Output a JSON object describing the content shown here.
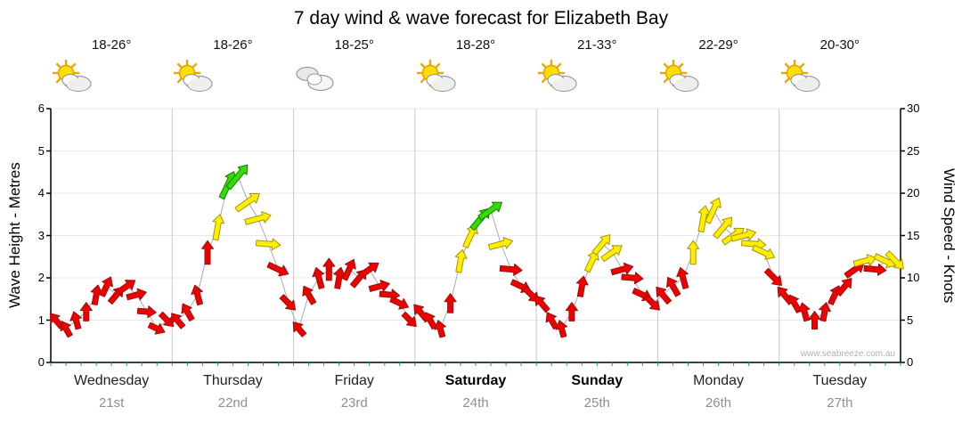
{
  "title": "7 day wind & wave forecast for Elizabeth Bay",
  "watermark": "www.seabreeze.com.au",
  "axes": {
    "left_label": "Wave Height - Metres",
    "right_label": "Wind Speed - Knots",
    "left_ticks": [
      0,
      1,
      2,
      3,
      4,
      5,
      6
    ],
    "right_ticks": [
      0,
      5,
      10,
      15,
      20,
      25,
      30
    ],
    "left_range_metres": [
      0,
      6
    ],
    "right_range_knots": [
      0,
      30
    ]
  },
  "days": [
    {
      "name": "Wednesday",
      "date": "21st",
      "temp": "18-26°",
      "icon": "sun-cloud",
      "bold": false
    },
    {
      "name": "Thursday",
      "date": "22nd",
      "temp": "18-26°",
      "icon": "sun-cloud",
      "bold": false
    },
    {
      "name": "Friday",
      "date": "23rd",
      "temp": "18-25°",
      "icon": "cloud",
      "bold": false
    },
    {
      "name": "Saturday",
      "date": "24th",
      "temp": "18-28°",
      "icon": "sun-cloud",
      "bold": true
    },
    {
      "name": "Sunday",
      "date": "25th",
      "temp": "21-33°",
      "icon": "sun-cloud",
      "bold": true
    },
    {
      "name": "Monday",
      "date": "26th",
      "temp": "22-29°",
      "icon": "sun-cloud",
      "bold": false
    },
    {
      "name": "Tuesday",
      "date": "27th",
      "temp": "20-30°",
      "icon": "sun-cloud",
      "bold": false
    }
  ],
  "palette": {
    "red": "#ee0000",
    "red_stroke": "#991111",
    "yellow": "#ffee00",
    "yellow_stroke": "#a69500",
    "green": "#33dd00",
    "green_stroke": "#1c7a00",
    "grid": "#c8c8c8",
    "grid_light": "#e8e8e8",
    "axis": "#000000",
    "minor_tick": "#00a8a8",
    "link_line": "#aaaaaa"
  },
  "chart_data": {
    "type": "scatter",
    "title": "7 day wind & wave forecast for Elizabeth Bay",
    "x_unit": "hours from Wednesday 00:00",
    "x_range": [
      0,
      168
    ],
    "y_unit": "knots (wind speed, right axis); wave metres = knots/5 (left axis)",
    "y_range": [
      0,
      30
    ],
    "categories": [
      "Wednesday 21st",
      "Thursday 22nd",
      "Friday 23rd",
      "Saturday 24th",
      "Sunday 25th",
      "Monday 26th",
      "Tuesday 27th"
    ],
    "point_format": [
      "t_hours",
      "speed_knots",
      "direction_deg",
      "color r|y|g"
    ],
    "points": [
      [
        1,
        5,
        320,
        "r"
      ],
      [
        3,
        4,
        330,
        "r"
      ],
      [
        5,
        5,
        345,
        "r"
      ],
      [
        7,
        6,
        0,
        "r"
      ],
      [
        9,
        8,
        10,
        "r"
      ],
      [
        11,
        9,
        25,
        "r"
      ],
      [
        13,
        8,
        40,
        "r"
      ],
      [
        15,
        9,
        55,
        "r"
      ],
      [
        17,
        8,
        75,
        "r"
      ],
      [
        19,
        6,
        95,
        "r"
      ],
      [
        21,
        4,
        115,
        "r"
      ],
      [
        23,
        5,
        135,
        "r"
      ],
      [
        25,
        5,
        320,
        "r"
      ],
      [
        27,
        6,
        330,
        "r"
      ],
      [
        29,
        8,
        345,
        "r"
      ],
      [
        31,
        13,
        0,
        "r"
      ],
      [
        33,
        16,
        10,
        "y"
      ],
      [
        35,
        21,
        25,
        "g"
      ],
      [
        37,
        22,
        40,
        "g"
      ],
      [
        39,
        19,
        55,
        "y"
      ],
      [
        41,
        17,
        75,
        "y"
      ],
      [
        43,
        14,
        95,
        "y"
      ],
      [
        45,
        11,
        115,
        "r"
      ],
      [
        47,
        7,
        135,
        "r"
      ],
      [
        49,
        4,
        320,
        "r"
      ],
      [
        51,
        8,
        330,
        "r"
      ],
      [
        53,
        10,
        345,
        "r"
      ],
      [
        55,
        11,
        0,
        "r"
      ],
      [
        57,
        10,
        10,
        "r"
      ],
      [
        59,
        11,
        25,
        "r"
      ],
      [
        61,
        10,
        40,
        "r"
      ],
      [
        63,
        11,
        55,
        "r"
      ],
      [
        65,
        9,
        75,
        "r"
      ],
      [
        67,
        8,
        95,
        "r"
      ],
      [
        69,
        7,
        115,
        "r"
      ],
      [
        71,
        5,
        135,
        "r"
      ],
      [
        73,
        6,
        320,
        "r"
      ],
      [
        75,
        5,
        330,
        "r"
      ],
      [
        77,
        4,
        345,
        "r"
      ],
      [
        79,
        7,
        0,
        "r"
      ],
      [
        81,
        12,
        10,
        "y"
      ],
      [
        83,
        15,
        25,
        "y"
      ],
      [
        85,
        17,
        40,
        "g"
      ],
      [
        87,
        18,
        55,
        "g"
      ],
      [
        89,
        14,
        75,
        "y"
      ],
      [
        91,
        11,
        95,
        "r"
      ],
      [
        93,
        9,
        115,
        "r"
      ],
      [
        95,
        8,
        135,
        "r"
      ],
      [
        97,
        7,
        320,
        "r"
      ],
      [
        99,
        5,
        330,
        "r"
      ],
      [
        101,
        4,
        345,
        "r"
      ],
      [
        103,
        6,
        0,
        "r"
      ],
      [
        105,
        9,
        10,
        "r"
      ],
      [
        107,
        12,
        25,
        "y"
      ],
      [
        109,
        14,
        40,
        "y"
      ],
      [
        111,
        13,
        55,
        "y"
      ],
      [
        113,
        11,
        75,
        "r"
      ],
      [
        115,
        10,
        95,
        "r"
      ],
      [
        117,
        8,
        115,
        "r"
      ],
      [
        119,
        7,
        135,
        "r"
      ],
      [
        121,
        8,
        320,
        "r"
      ],
      [
        123,
        9,
        330,
        "r"
      ],
      [
        125,
        10,
        345,
        "r"
      ],
      [
        127,
        13,
        0,
        "y"
      ],
      [
        129,
        17,
        10,
        "y"
      ],
      [
        131,
        18,
        25,
        "y"
      ],
      [
        133,
        16,
        40,
        "y"
      ],
      [
        135,
        15,
        55,
        "y"
      ],
      [
        137,
        15,
        75,
        "y"
      ],
      [
        139,
        14,
        95,
        "y"
      ],
      [
        141,
        13,
        115,
        "y"
      ],
      [
        143,
        10,
        135,
        "r"
      ],
      [
        145,
        8,
        320,
        "r"
      ],
      [
        147,
        7,
        330,
        "r"
      ],
      [
        149,
        6,
        345,
        "r"
      ],
      [
        151,
        5,
        0,
        "r"
      ],
      [
        153,
        6,
        10,
        "r"
      ],
      [
        155,
        8,
        25,
        "r"
      ],
      [
        157,
        9,
        40,
        "r"
      ],
      [
        159,
        11,
        55,
        "r"
      ],
      [
        161,
        12,
        75,
        "y"
      ],
      [
        163,
        11,
        95,
        "r"
      ],
      [
        165,
        12,
        115,
        "y"
      ],
      [
        167,
        12,
        135,
        "y"
      ]
    ]
  }
}
